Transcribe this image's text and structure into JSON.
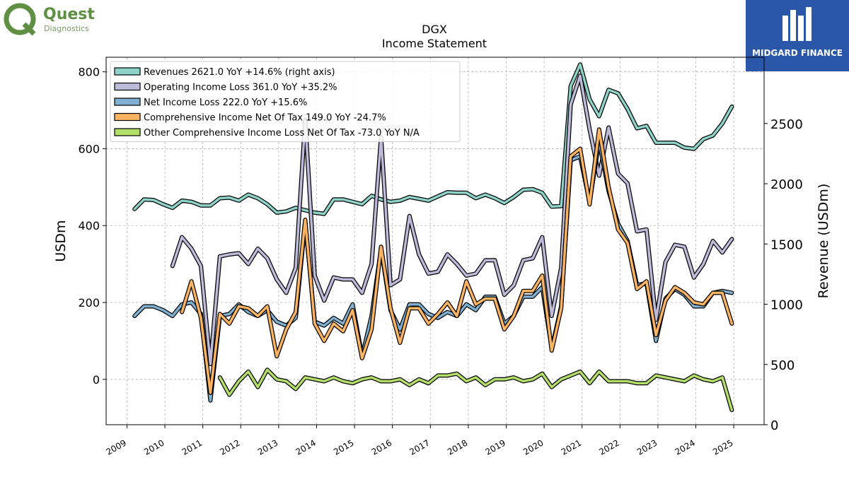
{
  "branding": {
    "left_logo_name": "Quest",
    "left_logo_sub": "Diagnostics",
    "right_logo_name": "MIDGARD FINANCE"
  },
  "chart_data": {
    "type": "line",
    "title": "DGX",
    "subtitle": "Income Statement",
    "ylabel": "USDm",
    "ylabel_right": "Revenue (USDm)",
    "ylim": [
      -118,
      838
    ],
    "ylim_right": [
      0,
      3050
    ],
    "yticks": [
      0,
      200,
      400,
      600,
      800
    ],
    "yticks_right": [
      0,
      500,
      1000,
      1500,
      2000,
      2500
    ],
    "xlim": [
      2008.45,
      2025.8
    ],
    "xticks": [
      2009,
      2010,
      2011,
      2012,
      2013,
      2014,
      2015,
      2016,
      2017,
      2018,
      2019,
      2020,
      2021,
      2022,
      2023,
      2024,
      2025
    ],
    "grid": true,
    "legend_position": "top-left",
    "series": [
      {
        "name": "Revenues  2621.0 YoY +14.6% (right axis)",
        "color": "#8dd3c7",
        "axis": "right",
        "x": [
          2009.2,
          2009.45,
          2009.7,
          2009.95,
          2010.2,
          2010.45,
          2010.7,
          2010.95,
          2011.2,
          2011.45,
          2011.7,
          2011.95,
          2012.2,
          2012.45,
          2012.7,
          2012.95,
          2013.2,
          2013.45,
          2013.7,
          2013.95,
          2014.2,
          2014.45,
          2014.7,
          2014.95,
          2015.2,
          2015.45,
          2015.7,
          2015.95,
          2016.2,
          2016.45,
          2016.7,
          2016.95,
          2017.2,
          2017.45,
          2017.7,
          2017.95,
          2018.2,
          2018.45,
          2018.7,
          2018.95,
          2019.2,
          2019.45,
          2019.7,
          2019.95,
          2020.2,
          2020.45,
          2020.7,
          2020.95,
          2021.2,
          2021.45,
          2021.7,
          2021.95,
          2022.2,
          2022.45,
          2022.7,
          2022.95,
          2023.2,
          2023.45,
          2023.7,
          2023.95,
          2024.2,
          2024.45,
          2024.7,
          2024.95
        ],
        "values": [
          1790,
          1870,
          1865,
          1830,
          1800,
          1860,
          1850,
          1820,
          1820,
          1880,
          1885,
          1860,
          1910,
          1880,
          1830,
          1760,
          1770,
          1800,
          1780,
          1760,
          1750,
          1870,
          1870,
          1850,
          1830,
          1900,
          1870,
          1850,
          1860,
          1890,
          1875,
          1860,
          1895,
          1930,
          1925,
          1925,
          1880,
          1910,
          1880,
          1840,
          1890,
          1950,
          1955,
          1925,
          1810,
          1815,
          2810,
          2990,
          2700,
          2560,
          2780,
          2750,
          2620,
          2460,
          2480,
          2340,
          2340,
          2340,
          2300,
          2290,
          2370,
          2400,
          2500,
          2640
        ]
      },
      {
        "name": "Operating Income Loss  361.0 YoY +35.2%",
        "color": "#bebada",
        "axis": "left",
        "x": [
          2010.2,
          2010.45,
          2010.7,
          2010.95,
          2011.2,
          2011.45,
          2011.7,
          2011.95,
          2012.2,
          2012.45,
          2012.7,
          2012.95,
          2013.2,
          2013.45,
          2013.7,
          2013.95,
          2014.2,
          2014.45,
          2014.7,
          2014.95,
          2015.2,
          2015.45,
          2015.7,
          2015.95,
          2016.2,
          2016.45,
          2016.7,
          2016.95,
          2017.2,
          2017.45,
          2017.7,
          2017.95,
          2018.2,
          2018.45,
          2018.7,
          2018.95,
          2019.2,
          2019.45,
          2019.7,
          2019.95,
          2020.2,
          2020.45,
          2020.7,
          2020.95,
          2021.2,
          2021.45,
          2021.7,
          2021.95,
          2022.2,
          2022.45,
          2022.7,
          2022.95,
          2023.2,
          2023.45,
          2023.7,
          2023.95,
          2024.2,
          2024.45,
          2024.7,
          2024.95
        ],
        "values": [
          295,
          370,
          340,
          295,
          40,
          320,
          325,
          328,
          300,
          340,
          315,
          260,
          225,
          290,
          675,
          270,
          205,
          265,
          260,
          260,
          225,
          300,
          630,
          245,
          260,
          425,
          325,
          275,
          280,
          325,
          300,
          270,
          275,
          310,
          310,
          220,
          245,
          310,
          315,
          370,
          165,
          290,
          715,
          790,
          650,
          530,
          655,
          535,
          510,
          385,
          390,
          155,
          305,
          350,
          345,
          265,
          300,
          360,
          330,
          365
        ]
      },
      {
        "name": "Net Income Loss  222.0 YoY +15.6%",
        "color": "#80b1d3",
        "axis": "left",
        "x": [
          2009.2,
          2009.45,
          2009.7,
          2009.95,
          2010.2,
          2010.45,
          2010.7,
          2010.95,
          2011.2,
          2011.45,
          2011.7,
          2011.95,
          2012.2,
          2012.45,
          2012.7,
          2012.95,
          2013.2,
          2013.45,
          2013.7,
          2013.95,
          2014.2,
          2014.45,
          2014.7,
          2014.95,
          2015.2,
          2015.45,
          2015.7,
          2015.95,
          2016.2,
          2016.45,
          2016.7,
          2016.95,
          2017.2,
          2017.45,
          2017.7,
          2017.95,
          2018.2,
          2018.45,
          2018.7,
          2018.95,
          2019.2,
          2019.45,
          2019.7,
          2019.95,
          2020.2,
          2020.45,
          2020.7,
          2020.95,
          2021.2,
          2021.45,
          2021.7,
          2021.95,
          2022.2,
          2022.45,
          2022.7,
          2022.95,
          2023.2,
          2023.45,
          2023.7,
          2023.95,
          2024.2,
          2024.45,
          2024.7,
          2024.95
        ],
        "values": [
          165,
          190,
          190,
          180,
          165,
          195,
          200,
          170,
          -55,
          165,
          170,
          195,
          175,
          165,
          180,
          150,
          140,
          160,
          410,
          150,
          140,
          160,
          145,
          195,
          60,
          165,
          340,
          180,
          130,
          195,
          195,
          170,
          160,
          175,
          165,
          195,
          180,
          215,
          215,
          145,
          165,
          215,
          215,
          240,
          80,
          190,
          570,
          580,
          460,
          620,
          490,
          405,
          360,
          245,
          250,
          100,
          210,
          235,
          220,
          190,
          190,
          225,
          230,
          225
        ]
      },
      {
        "name": "Comprehensive Income Net Of Tax  149.0 YoY -24.7%",
        "color": "#fdb462",
        "axis": "left",
        "x": [
          2010.45,
          2010.7,
          2010.95,
          2011.2,
          2011.45,
          2011.7,
          2011.95,
          2012.2,
          2012.45,
          2012.7,
          2012.95,
          2013.2,
          2013.45,
          2013.7,
          2013.95,
          2014.2,
          2014.45,
          2014.7,
          2014.95,
          2015.2,
          2015.45,
          2015.7,
          2015.95,
          2016.2,
          2016.45,
          2016.7,
          2016.95,
          2017.2,
          2017.45,
          2017.7,
          2017.95,
          2018.2,
          2018.45,
          2018.7,
          2018.95,
          2019.2,
          2019.45,
          2019.7,
          2019.95,
          2020.2,
          2020.45,
          2020.7,
          2020.95,
          2021.2,
          2021.45,
          2021.7,
          2021.95,
          2022.2,
          2022.45,
          2022.7,
          2022.95,
          2023.2,
          2023.45,
          2023.7,
          2023.95,
          2024.2,
          2024.45,
          2024.7,
          2024.95
        ],
        "values": [
          175,
          255,
          160,
          -35,
          170,
          145,
          190,
          185,
          165,
          190,
          60,
          130,
          175,
          415,
          145,
          100,
          145,
          125,
          180,
          55,
          130,
          345,
          185,
          95,
          185,
          185,
          145,
          170,
          200,
          165,
          255,
          195,
          210,
          210,
          130,
          165,
          230,
          230,
          270,
          75,
          185,
          580,
          600,
          455,
          650,
          500,
          390,
          355,
          235,
          255,
          115,
          205,
          240,
          225,
          200,
          195,
          225,
          225,
          145
        ]
      },
      {
        "name": "Other Comprehensive Income Loss Net Of Tax  -73.0 YoY N/A",
        "color": "#b3de69",
        "axis": "left",
        "x": [
          2011.45,
          2011.7,
          2011.95,
          2012.2,
          2012.45,
          2012.7,
          2012.95,
          2013.2,
          2013.45,
          2013.7,
          2013.95,
          2014.2,
          2014.45,
          2014.7,
          2014.95,
          2015.2,
          2015.45,
          2015.7,
          2015.95,
          2016.2,
          2016.45,
          2016.7,
          2016.95,
          2017.2,
          2017.45,
          2017.7,
          2017.95,
          2018.2,
          2018.45,
          2018.7,
          2018.95,
          2019.2,
          2019.45,
          2019.7,
          2019.95,
          2020.2,
          2020.45,
          2020.7,
          2020.95,
          2021.2,
          2021.45,
          2021.7,
          2021.95,
          2022.2,
          2022.45,
          2022.7,
          2022.95,
          2023.2,
          2023.45,
          2023.7,
          2023.95,
          2024.2,
          2024.45,
          2024.7,
          2024.95
        ],
        "values": [
          5,
          -40,
          -5,
          20,
          -20,
          25,
          0,
          -5,
          -25,
          5,
          0,
          -5,
          5,
          -5,
          -10,
          0,
          5,
          -5,
          -5,
          0,
          -15,
          0,
          -10,
          10,
          10,
          15,
          -5,
          5,
          -15,
          0,
          0,
          5,
          -5,
          0,
          15,
          -20,
          0,
          10,
          20,
          -10,
          20,
          -5,
          -5,
          -5,
          -10,
          -10,
          10,
          5,
          0,
          -5,
          10,
          0,
          -5,
          5,
          -80
        ]
      }
    ]
  }
}
